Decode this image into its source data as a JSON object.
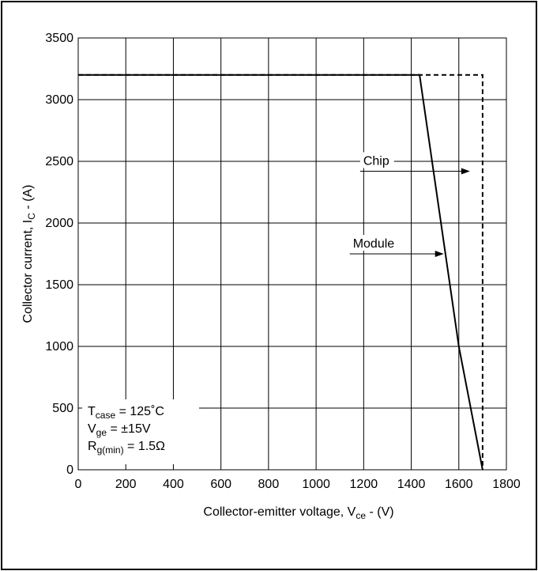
{
  "chart_data": {
    "type": "line",
    "title": "",
    "xlim": [
      0,
      1800
    ],
    "ylim": [
      0,
      3500
    ],
    "x_ticks": [
      "0",
      "200",
      "400",
      "600",
      "800",
      "1000",
      "1200",
      "1400",
      "1600",
      "1800"
    ],
    "y_ticks": [
      "0",
      "500",
      "1000",
      "1500",
      "2000",
      "2500",
      "3000",
      "3500"
    ],
    "xlabel": {
      "main": "Collector-emitter voltage, V",
      "sub": "ce",
      "tail": " - (V)"
    },
    "ylabel": {
      "main": "Collector current, I",
      "sub": "C",
      "tail": " - (A)"
    },
    "grid": true,
    "series": [
      {
        "name": "Chip",
        "style": "dashed",
        "color": "#000000",
        "x": [
          0,
          1700,
          1700
        ],
        "y": [
          3200,
          3200,
          0
        ]
      },
      {
        "name": "Module",
        "style": "solid",
        "color": "#000000",
        "x": [
          0,
          1435,
          1600,
          1700
        ],
        "y": [
          3200,
          3200,
          1000,
          0
        ]
      }
    ],
    "annotations": [
      {
        "text": "Chip",
        "x": 1650,
        "y": 2420
      },
      {
        "text": "Module",
        "x": 1540,
        "y": 1750
      }
    ],
    "conditions": [
      {
        "main": "T",
        "sub": "case",
        "tail": " = 125˚C"
      },
      {
        "main": "V",
        "sub": "ge",
        "tail": " = ±15V"
      },
      {
        "main": "R",
        "sub": "g(min)",
        "tail": " = 1.5Ω"
      }
    ]
  }
}
